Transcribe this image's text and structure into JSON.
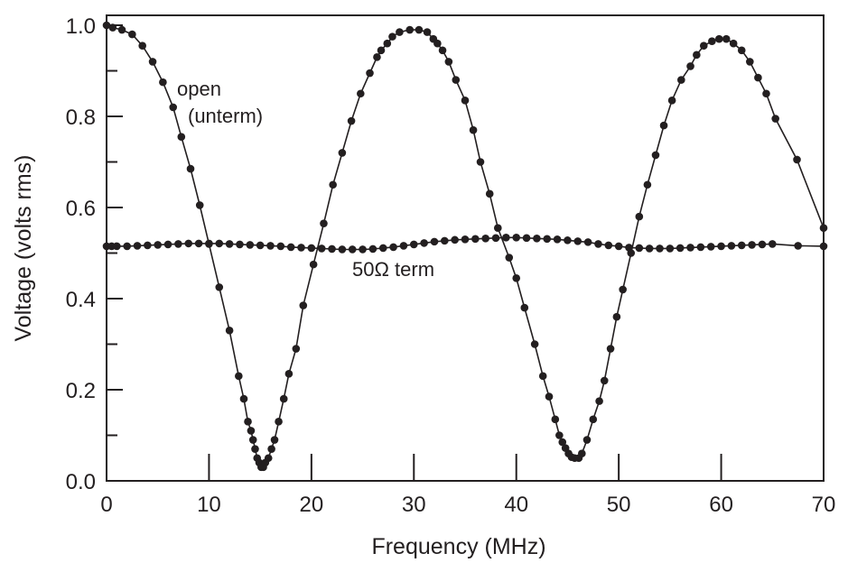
{
  "chart_data": {
    "type": "line",
    "title": "",
    "xlabel": "Frequency (MHz)",
    "ylabel": "Voltage (volts rms)",
    "xlim": [
      0,
      70
    ],
    "ylim": [
      0,
      1.0
    ],
    "xticks": [
      "0",
      "10",
      "20",
      "30",
      "40",
      "50",
      "60",
      "70"
    ],
    "yticks": [
      "0.0",
      "0.2",
      "0.4",
      "0.6",
      "0.8",
      "1.0"
    ],
    "grid": false,
    "annotations": {
      "open_line1": "open",
      "open_line2": "(unterm)",
      "term": "50Ω term"
    },
    "series": [
      {
        "name": "open (unterm)",
        "x": [
          0,
          0.6,
          1.5,
          2.5,
          3.5,
          4.5,
          5.5,
          6.5,
          7.3,
          8.2,
          9.1,
          10,
          11,
          12,
          12.9,
          13.4,
          13.8,
          14.1,
          14.3,
          14.5,
          14.7,
          14.9,
          15.1,
          15.3,
          15.5,
          15.8,
          16.1,
          16.4,
          16.8,
          17.3,
          17.8,
          18.5,
          19.2,
          20.2,
          21.2,
          22.1,
          23,
          23.9,
          24.8,
          25.7,
          26.4,
          26.8,
          27.4,
          27.9,
          28.6,
          29.6,
          30.5,
          31.3,
          31.9,
          32.3,
          32.8,
          33.4,
          34.1,
          35,
          35.8,
          36.5,
          37.4,
          38.2,
          39.3,
          40,
          40.8,
          41.8,
          42.6,
          43.2,
          43.8,
          44.2,
          44.5,
          44.8,
          45.1,
          45.4,
          45.7,
          46.1,
          46.4,
          46.9,
          47.5,
          48.1,
          48.6,
          49.2,
          49.8,
          50.4,
          51.2,
          52,
          52.8,
          53.6,
          54.4,
          55.2,
          56.1,
          57,
          57.6,
          58.3,
          59.1,
          59.8,
          60.5,
          61.2,
          62,
          62.8,
          63.6,
          64.4,
          65.3,
          67.4,
          70
        ],
        "y": [
          1.0,
          0.995,
          0.99,
          0.98,
          0.955,
          0.92,
          0.875,
          0.82,
          0.755,
          0.685,
          0.605,
          0.52,
          0.425,
          0.33,
          0.23,
          0.18,
          0.13,
          0.11,
          0.09,
          0.07,
          0.05,
          0.04,
          0.03,
          0.03,
          0.04,
          0.05,
          0.07,
          0.09,
          0.13,
          0.18,
          0.235,
          0.29,
          0.385,
          0.475,
          0.565,
          0.65,
          0.72,
          0.79,
          0.85,
          0.895,
          0.93,
          0.945,
          0.96,
          0.975,
          0.985,
          0.99,
          0.99,
          0.985,
          0.97,
          0.96,
          0.945,
          0.92,
          0.88,
          0.835,
          0.77,
          0.7,
          0.63,
          0.555,
          0.49,
          0.445,
          0.38,
          0.3,
          0.23,
          0.185,
          0.135,
          0.1,
          0.085,
          0.072,
          0.06,
          0.052,
          0.05,
          0.05,
          0.06,
          0.09,
          0.135,
          0.175,
          0.22,
          0.29,
          0.36,
          0.42,
          0.5,
          0.58,
          0.65,
          0.715,
          0.78,
          0.835,
          0.88,
          0.91,
          0.935,
          0.955,
          0.965,
          0.97,
          0.97,
          0.96,
          0.945,
          0.92,
          0.885,
          0.85,
          0.795,
          0.705,
          0.555
        ]
      },
      {
        "name": "50Ω term",
        "x": [
          0,
          0.5,
          1,
          2,
          3,
          4,
          5,
          6,
          7,
          8,
          9,
          10,
          11,
          12,
          13,
          14,
          15,
          16,
          17,
          18,
          19,
          20,
          21,
          22,
          23,
          24,
          25,
          26,
          27,
          28,
          29,
          30,
          31,
          32,
          33,
          34,
          35,
          36,
          37,
          38,
          39,
          40,
          41,
          42,
          43,
          44,
          45,
          46,
          47,
          48,
          49,
          50,
          51,
          52,
          53,
          54,
          55,
          56,
          57,
          58,
          59,
          60,
          61,
          62,
          63,
          64,
          65,
          67.5,
          70
        ],
        "y": [
          0.515,
          0.515,
          0.515,
          0.515,
          0.516,
          0.517,
          0.518,
          0.519,
          0.52,
          0.521,
          0.521,
          0.521,
          0.521,
          0.52,
          0.519,
          0.518,
          0.517,
          0.516,
          0.515,
          0.513,
          0.512,
          0.511,
          0.51,
          0.509,
          0.508,
          0.508,
          0.508,
          0.509,
          0.511,
          0.513,
          0.516,
          0.519,
          0.522,
          0.525,
          0.527,
          0.529,
          0.53,
          0.531,
          0.532,
          0.533,
          0.534,
          0.534,
          0.533,
          0.532,
          0.531,
          0.53,
          0.528,
          0.526,
          0.524,
          0.52,
          0.517,
          0.515,
          0.512,
          0.511,
          0.51,
          0.51,
          0.51,
          0.511,
          0.512,
          0.513,
          0.514,
          0.515,
          0.516,
          0.517,
          0.518,
          0.519,
          0.52,
          0.516,
          0.515
        ]
      }
    ]
  }
}
